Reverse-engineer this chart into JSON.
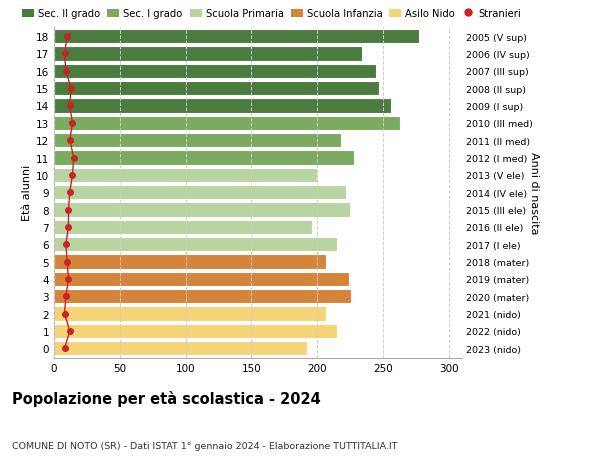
{
  "ages": [
    18,
    17,
    16,
    15,
    14,
    13,
    12,
    11,
    10,
    9,
    8,
    7,
    6,
    5,
    4,
    3,
    2,
    1,
    0
  ],
  "years": [
    "2005 (V sup)",
    "2006 (IV sup)",
    "2007 (III sup)",
    "2008 (II sup)",
    "2009 (I sup)",
    "2010 (III med)",
    "2011 (II med)",
    "2012 (I med)",
    "2013 (V ele)",
    "2014 (IV ele)",
    "2015 (III ele)",
    "2016 (II ele)",
    "2017 (I ele)",
    "2018 (mater)",
    "2019 (mater)",
    "2020 (mater)",
    "2021 (nido)",
    "2022 (nido)",
    "2023 (nido)"
  ],
  "values": [
    277,
    234,
    245,
    247,
    256,
    263,
    218,
    228,
    200,
    222,
    225,
    196,
    215,
    207,
    224,
    226,
    207,
    215,
    192
  ],
  "stranieri": [
    10,
    8,
    9,
    13,
    12,
    14,
    12,
    15,
    14,
    12,
    11,
    11,
    9,
    10,
    11,
    9,
    8,
    12,
    8
  ],
  "bar_colors": [
    "#4a7c3f",
    "#4a7c3f",
    "#4a7c3f",
    "#4a7c3f",
    "#4a7c3f",
    "#7aab5e",
    "#7aab5e",
    "#7aab5e",
    "#b8d4a0",
    "#b8d4a0",
    "#b8d4a0",
    "#b8d4a0",
    "#b8d4a0",
    "#d4853a",
    "#d4853a",
    "#d4853a",
    "#f5d478",
    "#f5d478",
    "#f5d478"
  ],
  "legend_labels": [
    "Sec. II grado",
    "Sec. I grado",
    "Scuola Primaria",
    "Scuola Infanzia",
    "Asilo Nido",
    "Stranieri"
  ],
  "legend_colors": [
    "#4a7c3f",
    "#7aab5e",
    "#b8d4a0",
    "#d4853a",
    "#f5d478",
    "#cc2222"
  ],
  "stranieri_color": "#cc2222",
  "title": "Popolazione per età scolastica - 2024",
  "subtitle": "COMUNE DI NOTO (SR) - Dati ISTAT 1° gennaio 2024 - Elaborazione TUTTITALIA.IT",
  "ylabel": "Età alunni",
  "ylabel2": "Anni di nascita",
  "xlim": [
    0,
    310
  ],
  "xticks": [
    0,
    50,
    100,
    150,
    200,
    250,
    300
  ],
  "bg_color": "#ffffff",
  "grid_color": "#cccccc",
  "bar_height": 0.82
}
